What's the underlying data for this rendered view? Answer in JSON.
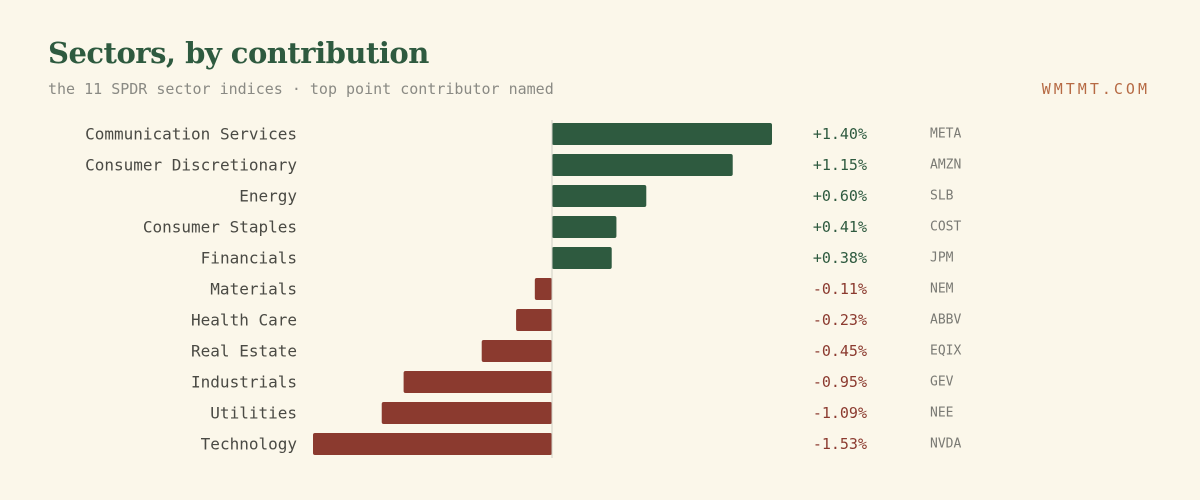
{
  "header": {
    "title": "Sectors, by contribution",
    "subtitle": "the 11 SPDR sector indices · top point contributor named",
    "brand": "WMTMT.COM"
  },
  "colors": {
    "positive": "#2e5a3f",
    "negative": "#8b3a2f",
    "background": "#fbf7ea",
    "axis": "#cfcfc4"
  },
  "chart_data": {
    "type": "bar",
    "orientation": "horizontal",
    "title": "Sectors, by contribution",
    "subtitle": "the 11 SPDR sector indices · top point contributor named",
    "categories": [
      "Communication Services",
      "Consumer Discretionary",
      "Energy",
      "Consumer Staples",
      "Financials",
      "Materials",
      "Health Care",
      "Real Estate",
      "Industrials",
      "Utilities",
      "Technology"
    ],
    "values": [
      1.4,
      1.15,
      0.6,
      0.41,
      0.38,
      -0.11,
      -0.23,
      -0.45,
      -0.95,
      -1.09,
      -1.53
    ],
    "value_labels": [
      "+1.40%",
      "+1.15%",
      "+0.60%",
      "+0.41%",
      "+0.38%",
      "-0.11%",
      "-0.23%",
      "-0.45%",
      "-0.95%",
      "-1.09%",
      "-1.53%"
    ],
    "contributors": [
      "META",
      "AMZN",
      "SLB",
      "COST",
      "JPM",
      "NEM",
      "ABBV",
      "EQIX",
      "GEV",
      "NEE",
      "NVDA"
    ],
    "unit": "%",
    "xlim": [
      -1.53,
      1.4
    ],
    "xlabel": "",
    "ylabel": "",
    "grid": false,
    "legend": "none"
  }
}
